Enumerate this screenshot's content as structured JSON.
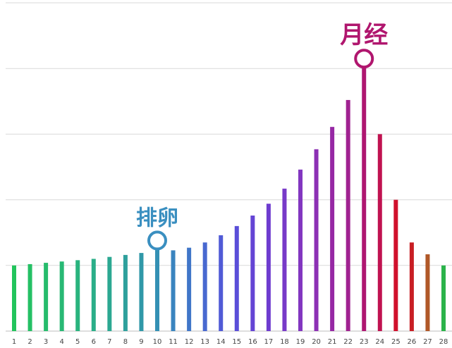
{
  "chart_data": {
    "type": "bar",
    "categories": [
      "1",
      "2",
      "3",
      "4",
      "5",
      "6",
      "7",
      "8",
      "9",
      "10",
      "11",
      "12",
      "13",
      "14",
      "15",
      "16",
      "17",
      "18",
      "19",
      "20",
      "21",
      "22",
      "23",
      "24",
      "25",
      "26",
      "27",
      "28"
    ],
    "values": [
      1.0,
      1.02,
      1.04,
      1.06,
      1.08,
      1.1,
      1.13,
      1.16,
      1.19,
      1.38,
      1.23,
      1.27,
      1.35,
      1.46,
      1.6,
      1.76,
      1.94,
      2.17,
      2.46,
      2.77,
      3.11,
      3.52,
      4.15,
      3.0,
      2.0,
      1.35,
      1.17,
      1.0
    ],
    "colors": [
      "#22c45c",
      "#24c064",
      "#26bc6c",
      "#28b874",
      "#29b37e",
      "#2aae88",
      "#2ba892",
      "#2ea09c",
      "#3098a8",
      "#3490b4",
      "#3a84bf",
      "#4076c8",
      "#4868d0",
      "#505ad6",
      "#5a4ed8",
      "#6444d4",
      "#6e3ccf",
      "#783ac8",
      "#8236c0",
      "#8c30b4",
      "#9628a4",
      "#a02290",
      "#aa1a7c",
      "#c01250",
      "#d0102c",
      "#c81e24",
      "#b05828",
      "#2bb34a"
    ],
    "ylim": [
      0,
      5
    ],
    "grid": true,
    "annotations": [
      {
        "label": "排卵",
        "category": "10",
        "color": "#3a8fc0"
      },
      {
        "label": "月经",
        "category": "23",
        "color": "#b0166e"
      }
    ]
  }
}
